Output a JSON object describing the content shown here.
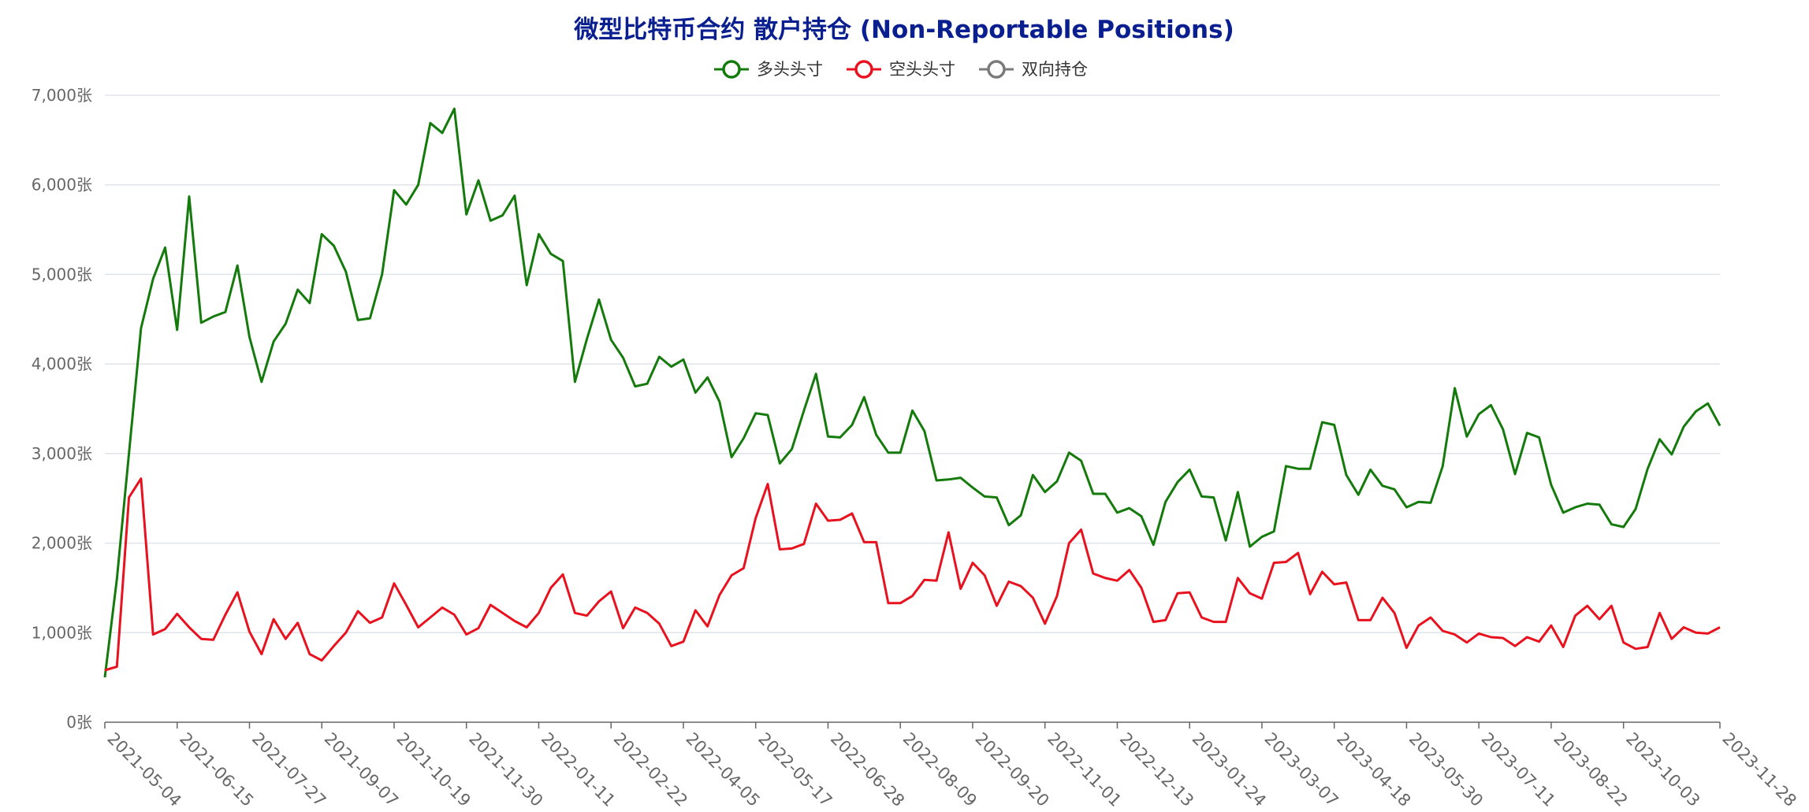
{
  "chart_data": {
    "type": "line",
    "title": "微型比特币合约 散户持仓 (Non-Reportable Positions)",
    "y_unit": "张",
    "ylim": [
      0,
      7000
    ],
    "yticks": [
      0,
      1000,
      2000,
      3000,
      4000,
      5000,
      6000,
      7000
    ],
    "ytick_labels": [
      "0张",
      "1,000张",
      "2,000张",
      "3,000张",
      "4,000张",
      "5,000张",
      "6,000张",
      "7,000张"
    ],
    "x_tick_labels": [
      "2021-05-04",
      "2021-06-15",
      "2021-07-27",
      "2021-09-07",
      "2021-10-19",
      "2021-11-30",
      "2022-01-11",
      "2022-02-22",
      "2022-04-05",
      "2022-05-17",
      "2022-06-28",
      "2022-08-09",
      "2022-09-20",
      "2022-11-01",
      "2022-12-13",
      "2023-01-24",
      "2023-03-07",
      "2023-04-18",
      "2023-05-30",
      "2023-07-11",
      "2023-08-22",
      "2023-10-03",
      "2023-11-28"
    ],
    "x_tick_index": [
      0,
      6,
      12,
      18,
      24,
      30,
      36,
      42,
      48,
      54,
      60,
      66,
      72,
      78,
      84,
      90,
      96,
      102,
      108,
      114,
      120,
      126,
      134
    ],
    "legend_position": "top-center",
    "grid": true,
    "series": [
      {
        "name": "多头头寸",
        "color": "#157a0c",
        "values": [
          500,
          1600,
          3000,
          4400,
          4950,
          5300,
          4380,
          5870,
          4460,
          4530,
          4580,
          5100,
          4300,
          3800,
          4250,
          4450,
          4830,
          4680,
          5450,
          5320,
          5030,
          4490,
          4510,
          5000,
          5940,
          5780,
          6000,
          6690,
          6580,
          6850,
          5670,
          6050,
          5600,
          5660,
          5880,
          4880,
          5450,
          5230,
          5150,
          3800,
          4280,
          4720,
          4270,
          4070,
          3750,
          3780,
          4080,
          3970,
          4050,
          3680,
          3850,
          3580,
          2960,
          3170,
          3450,
          3430,
          2890,
          3050,
          3480,
          3890,
          3190,
          3180,
          3320,
          3630,
          3210,
          3010,
          3010,
          3480,
          3250,
          2700,
          2710,
          2730,
          2620,
          2520,
          2510,
          2200,
          2310,
          2760,
          2570,
          2690,
          3010,
          2920,
          2550,
          2550,
          2340,
          2390,
          2300,
          1980,
          2460,
          2680,
          2820,
          2520,
          2510,
          2030,
          2570,
          1960,
          2070,
          2130,
          2860,
          2830,
          2830,
          3350,
          3320,
          2760,
          2540,
          2820,
          2640,
          2600,
          2400,
          2460,
          2450,
          2860,
          3730,
          3190,
          3440,
          3540,
          3270,
          2770,
          3230,
          3180,
          2650,
          2340,
          2400,
          2440,
          2430,
          2210,
          2180,
          2380,
          2830,
          3160,
          2990,
          3300,
          3470,
          3560,
          3310
        ]
      },
      {
        "name": "空头头寸",
        "color": "#e8121f",
        "values": [
          580,
          620,
          2510,
          2720,
          980,
          1040,
          1210,
          1060,
          930,
          920,
          1200,
          1450,
          1010,
          760,
          1150,
          930,
          1110,
          760,
          690,
          850,
          1000,
          1240,
          1110,
          1170,
          1550,
          1310,
          1060,
          1170,
          1280,
          1200,
          980,
          1050,
          1310,
          1220,
          1130,
          1060,
          1220,
          1500,
          1650,
          1220,
          1190,
          1350,
          1460,
          1050,
          1280,
          1220,
          1100,
          850,
          900,
          1250,
          1070,
          1420,
          1640,
          1720,
          2280,
          2660,
          1930,
          1940,
          1990,
          2440,
          2250,
          2260,
          2330,
          2010,
          2010,
          1330,
          1330,
          1410,
          1590,
          1580,
          2120,
          1490,
          1780,
          1640,
          1300,
          1570,
          1520,
          1390,
          1100,
          1410,
          2000,
          2150,
          1660,
          1610,
          1580,
          1700,
          1500,
          1120,
          1140,
          1440,
          1450,
          1170,
          1120,
          1120,
          1610,
          1440,
          1380,
          1780,
          1790,
          1890,
          1430,
          1680,
          1540,
          1560,
          1140,
          1140,
          1390,
          1220,
          830,
          1080,
          1170,
          1020,
          980,
          890,
          990,
          950,
          940,
          850,
          950,
          900,
          1080,
          840,
          1190,
          1300,
          1150,
          1300,
          890,
          820,
          840,
          1220,
          930,
          1060,
          1000,
          990,
          1060
        ]
      },
      {
        "name": "双向持仓",
        "color": "#7a7a7a",
        "values": []
      }
    ]
  }
}
